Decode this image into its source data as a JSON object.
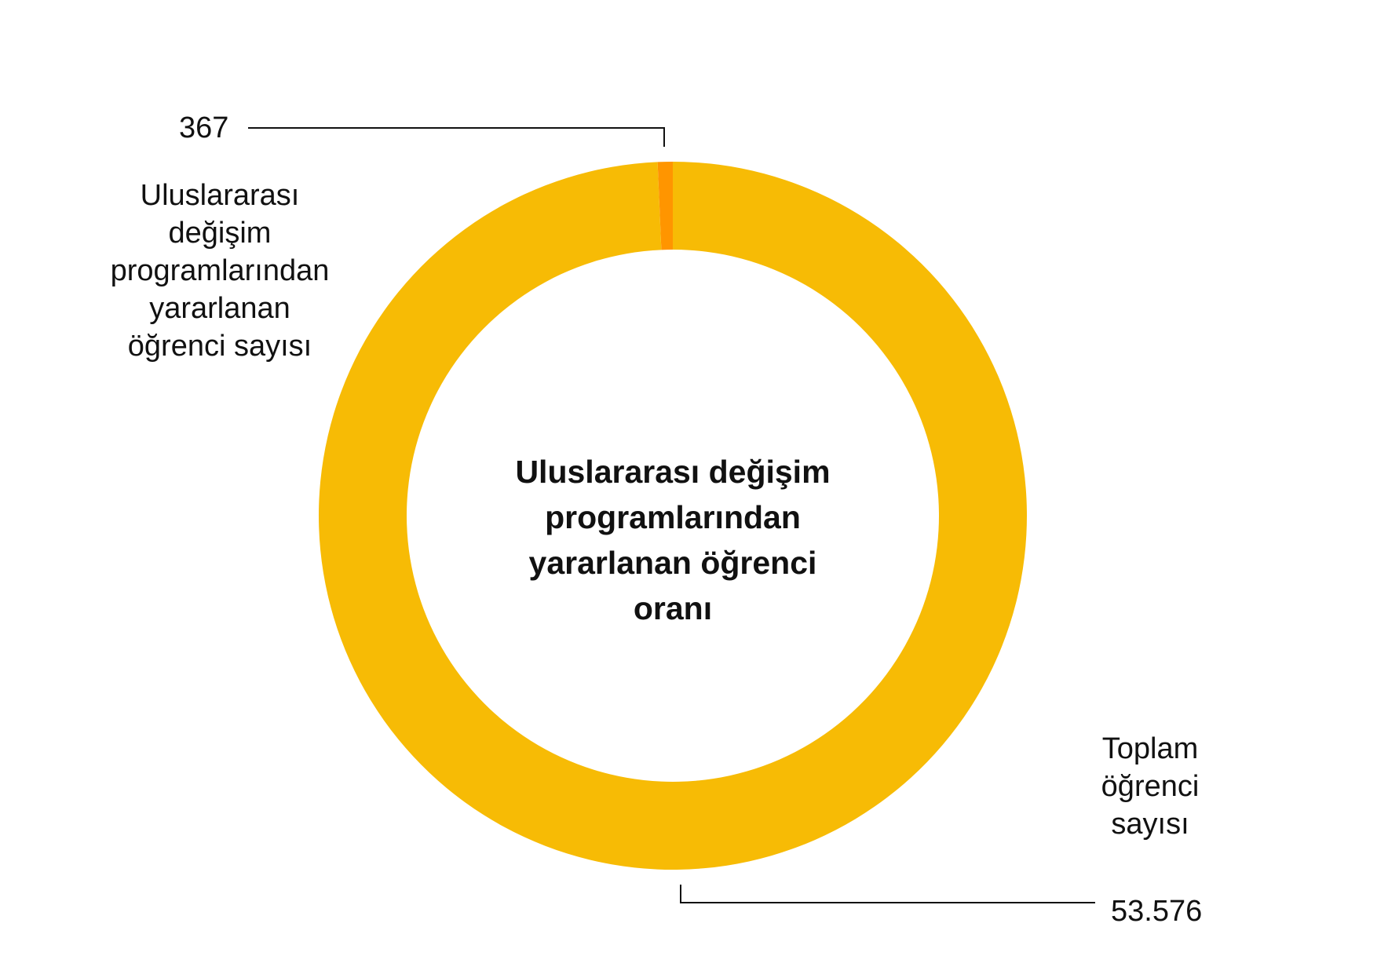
{
  "chart_data": {
    "type": "pie",
    "style": "donut",
    "title": "Uluslararası değişim\nprogramlarından\nyararlanan öğrenci\noranı",
    "slices": [
      {
        "label": "Uluslararası\ndeğişim\nprogramlarından\nyararlanan\nöğrenci sayısı",
        "value": 367,
        "value_label": "367",
        "color": "#FF9500"
      },
      {
        "label": "Toplam\nöğrenci\nsayısı",
        "value": 53576,
        "value_label": "53.576",
        "color": "#F7BB05"
      }
    ]
  }
}
